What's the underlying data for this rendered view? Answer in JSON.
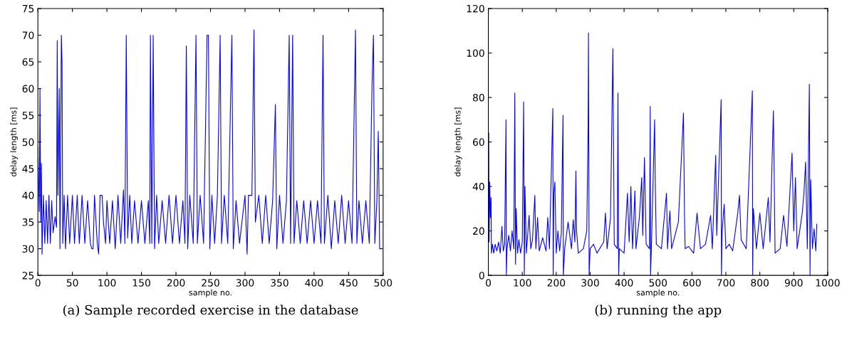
{
  "chart_data": [
    {
      "type": "line",
      "xlabel": "sample no.",
      "ylabel": "delay length [ms]",
      "annotations": [
        "(a) Sample recorded exercise in the database"
      ],
      "xlim": [
        0,
        500
      ],
      "ylim": [
        25,
        75
      ],
      "xticks": [
        0,
        50,
        100,
        150,
        200,
        250,
        300,
        350,
        400,
        450,
        500
      ],
      "yticks": [
        25,
        30,
        35,
        40,
        45,
        50,
        55,
        60,
        65,
        70,
        75
      ],
      "grid": false,
      "legend": false,
      "series": [
        {
          "color": "#0000ff",
          "x": [
            0,
            2,
            3,
            4,
            5,
            6,
            8,
            10,
            12,
            14,
            16,
            18,
            20,
            22,
            25,
            27,
            28,
            29,
            31,
            32,
            34,
            35,
            36,
            38,
            40,
            43,
            46,
            50,
            53,
            57,
            60,
            64,
            68,
            72,
            76,
            78,
            80,
            82,
            86,
            88,
            90,
            93,
            95,
            98,
            100,
            104,
            108,
            112,
            116,
            120,
            124,
            126,
            128,
            130,
            133,
            136,
            140,
            145,
            150,
            155,
            160,
            162,
            163,
            165,
            167,
            169,
            172,
            175,
            180,
            185,
            190,
            195,
            200,
            205,
            210,
            213,
            215,
            217,
            220,
            225,
            229,
            231,
            235,
            240,
            245,
            247,
            249,
            252,
            256,
            260,
            264,
            266,
            270,
            275,
            281,
            283,
            287,
            292,
            300,
            303,
            305,
            310,
            313,
            315,
            320,
            325,
            330,
            335,
            340,
            344,
            346,
            350,
            355,
            360,
            364,
            366,
            369,
            371,
            375,
            380,
            385,
            390,
            395,
            400,
            405,
            410,
            413,
            415,
            420,
            425,
            430,
            435,
            440,
            445,
            450,
            455,
            460,
            462,
            465,
            470,
            475,
            480,
            484,
            486,
            488,
            491,
            493,
            495
          ],
          "values": [
            49,
            37,
            60,
            35,
            46,
            29,
            40,
            31,
            39,
            31,
            40,
            31,
            39,
            33,
            36,
            34,
            69,
            40,
            60,
            30,
            70,
            65,
            31,
            40,
            30,
            40,
            31,
            40,
            31,
            40,
            31,
            40,
            31,
            39,
            31,
            30,
            30,
            40,
            31,
            29,
            40,
            40,
            35,
            31,
            39,
            31,
            39,
            30,
            40,
            31,
            41,
            31,
            70,
            32,
            40,
            31,
            39,
            31,
            39,
            31,
            39,
            31,
            70,
            31,
            70,
            30,
            40,
            31,
            39,
            31,
            40,
            31,
            40,
            31,
            39,
            31,
            68,
            30,
            40,
            31,
            70,
            31,
            40,
            31,
            70,
            70,
            30,
            40,
            31,
            40,
            70,
            31,
            40,
            31,
            70,
            30,
            39,
            31,
            40,
            29,
            40,
            40,
            71,
            35,
            40,
            31,
            40,
            31,
            39,
            57,
            30,
            40,
            31,
            39,
            70,
            31,
            70,
            31,
            39,
            31,
            39,
            31,
            39,
            31,
            39,
            31,
            70,
            31,
            40,
            30,
            39,
            31,
            40,
            31,
            39,
            31,
            71,
            31,
            39,
            31,
            39,
            31,
            61,
            70,
            31,
            39,
            52,
            30
          ]
        }
      ]
    },
    {
      "type": "line",
      "xlabel": "sample no.",
      "ylabel": "delay length [ms]",
      "annotations": [
        "(b) running the app"
      ],
      "xlim": [
        0,
        1000
      ],
      "ylim": [
        0,
        120
      ],
      "xticks": [
        0,
        100,
        200,
        300,
        400,
        500,
        600,
        700,
        800,
        900,
        1000
      ],
      "yticks": [
        0,
        20,
        40,
        60,
        80,
        100,
        120
      ],
      "grid": false,
      "legend": false,
      "series": [
        {
          "color": "#0000ff",
          "x": [
            1,
            2,
            4,
            6,
            8,
            9,
            12,
            16,
            20,
            25,
            30,
            35,
            40,
            44,
            48,
            52,
            53,
            55,
            60,
            65,
            70,
            75,
            78,
            80,
            82,
            86,
            90,
            95,
            100,
            104,
            106,
            108,
            112,
            120,
            125,
            130,
            137,
            140,
            145,
            150,
            160,
            170,
            175,
            180,
            190,
            191,
            193,
            196,
            200,
            205,
            210,
            215,
            220,
            221,
            225,
            235,
            245,
            250,
            255,
            258,
            260,
            265,
            280,
            290,
            294,
            295,
            297,
            300,
            310,
            320,
            340,
            345,
            350,
            360,
            367,
            369,
            371,
            380,
            382,
            384,
            386,
            400,
            410,
            415,
            420,
            425,
            432,
            435,
            445,
            452,
            455,
            460,
            465,
            475,
            477,
            478,
            480,
            490,
            492,
            495,
            510,
            525,
            528,
            535,
            540,
            560,
            575,
            576,
            578,
            580,
            590,
            605,
            615,
            625,
            640,
            655,
            660,
            670,
            673,
            686,
            687,
            689,
            695,
            700,
            710,
            720,
            735,
            740,
            745,
            760,
            778,
            779,
            781,
            790,
            800,
            810,
            825,
            830,
            840,
            842,
            845,
            860,
            870,
            880,
            895,
            900,
            905,
            910,
            925,
            930,
            935,
            940,
            946,
            948,
            950,
            955,
            960,
            965,
            968
          ],
          "values": [
            64,
            15,
            42,
            26,
            35,
            10,
            14,
            10,
            14,
            11,
            15,
            10,
            22,
            11,
            14,
            70,
            0,
            12,
            18,
            11,
            20,
            12,
            82,
            5,
            30,
            10,
            16,
            10,
            15,
            78,
            0,
            40,
            10,
            27,
            12,
            16,
            36,
            12,
            26,
            11,
            17,
            11,
            26,
            12,
            75,
            0,
            37,
            42,
            10,
            20,
            11,
            19,
            72,
            0,
            12,
            24,
            12,
            25,
            15,
            47,
            20,
            10,
            12,
            20,
            67,
            109,
            0,
            12,
            14,
            10,
            15,
            28,
            12,
            26,
            102,
            58,
            14,
            12,
            82,
            0,
            12,
            10,
            37,
            15,
            40,
            12,
            38,
            12,
            26,
            44,
            18,
            53,
            14,
            12,
            76,
            0,
            10,
            70,
            40,
            14,
            12,
            37,
            12,
            29,
            12,
            24,
            73,
            58,
            27,
            12,
            13,
            10,
            28,
            12,
            14,
            27,
            12,
            54,
            18,
            79,
            0,
            20,
            32,
            12,
            14,
            11,
            28,
            36,
            16,
            12,
            83,
            0,
            30,
            12,
            28,
            12,
            35,
            15,
            74,
            50,
            10,
            12,
            27,
            13,
            55,
            20,
            44,
            12,
            28,
            37,
            51,
            12,
            86,
            0,
            43,
            12,
            21,
            11,
            23
          ]
        }
      ]
    }
  ]
}
